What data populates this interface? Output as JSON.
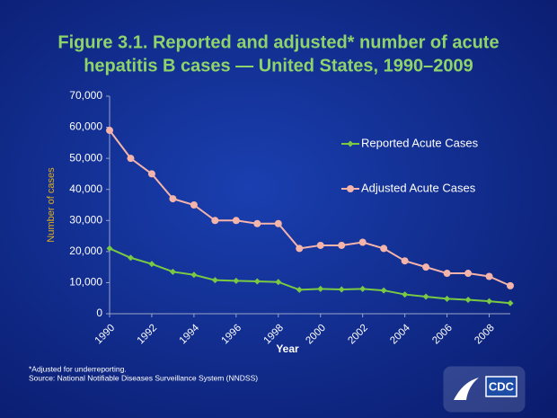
{
  "chart_data": {
    "type": "line",
    "title": [
      "Figure 3.1. Reported and adjusted* number of acute",
      "hepatitis B cases — United States, 1990–2009"
    ],
    "x_label": "Year",
    "y_label": "Number of cases",
    "x": [
      1990,
      1991,
      1992,
      1993,
      1994,
      1995,
      1996,
      1997,
      1998,
      1999,
      2000,
      2001,
      2002,
      2003,
      2004,
      2005,
      2006,
      2007,
      2008,
      2009
    ],
    "xlim": [
      1990,
      2009
    ],
    "xticks": [
      1990,
      1992,
      1994,
      1996,
      1998,
      2000,
      2002,
      2004,
      2006,
      2008
    ],
    "ylim": [
      0,
      70000
    ],
    "yticks": [
      0,
      {
        "value": 10000,
        "label": "10,000"
      },
      {
        "value": 20000,
        "label": "20,000"
      },
      {
        "value": 30000,
        "label": "30,000"
      },
      {
        "value": 40000,
        "label": "40,000"
      },
      {
        "value": 50000,
        "label": "50,000"
      },
      {
        "value": 60000,
        "label": "60,000"
      },
      {
        "value": 70000,
        "label": "70,000"
      }
    ],
    "legend": "upper right",
    "series": [
      {
        "name": "Reported Acute Cases",
        "color": "#7ac943",
        "marker": "diamond",
        "values": [
          21000,
          18000,
          16000,
          13500,
          12500,
          10800,
          10600,
          10400,
          10200,
          7700,
          8000,
          7800,
          8000,
          7500,
          6200,
          5500,
          4800,
          4500,
          4000,
          3400
        ]
      },
      {
        "name": "Adjusted Acute Cases",
        "color": "#f5b4aa",
        "marker": "circle",
        "values": [
          59000,
          50000,
          45000,
          37000,
          35000,
          30000,
          30000,
          29000,
          29000,
          21000,
          22000,
          22000,
          23000,
          21000,
          17000,
          15000,
          13000,
          13000,
          12000,
          9000
        ]
      }
    ]
  },
  "footnotes": [
    "*Adjusted for underreporting.",
    "Source: National Notifiable Diseases Surveillance System (NNDSS)"
  ],
  "logo": "CDC"
}
